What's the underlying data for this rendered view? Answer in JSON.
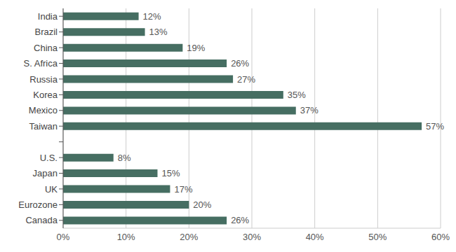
{
  "chart_data": {
    "type": "bar",
    "orientation": "horizontal",
    "grid": true,
    "data_labels": true,
    "color": "#466e62",
    "categories": [
      "India",
      "Brazil",
      "China",
      "S. Africa",
      "Russia",
      "Korea",
      "Mexico",
      "Taiwan",
      null,
      "U.S.",
      "Japan",
      "UK",
      "Eurozone",
      "Canada"
    ],
    "values": [
      12,
      13,
      19,
      26,
      27,
      35,
      37,
      57,
      null,
      8,
      15,
      17,
      20,
      26
    ],
    "value_labels": [
      "12%",
      "13%",
      "19%",
      "26%",
      "27%",
      "35%",
      "37%",
      "57%",
      null,
      "8%",
      "15%",
      "17%",
      "20%",
      "26%"
    ],
    "xlim": [
      0,
      60
    ],
    "xticks": [
      {
        "value": 0,
        "label": "0%"
      },
      {
        "value": 10,
        "label": "10%"
      },
      {
        "value": 20,
        "label": "20%"
      },
      {
        "value": 30,
        "label": "30%"
      },
      {
        "value": 40,
        "label": "40%"
      },
      {
        "value": 50,
        "label": "50%"
      },
      {
        "value": 60,
        "label": "60%"
      }
    ]
  }
}
